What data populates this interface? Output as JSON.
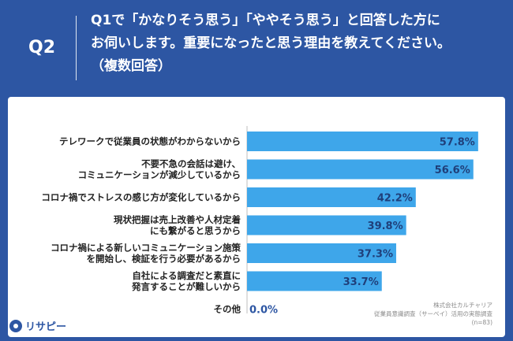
{
  "question": {
    "number": "Q2",
    "lines": [
      "Q1で「かなりそう思う」「ややそう思う」と回答した方に",
      "お伺いします。重要になったと思う理由を教えてください。",
      "（複数回答）"
    ]
  },
  "chart_data": {
    "type": "bar",
    "orientation": "horizontal",
    "categories": [
      [
        "テレワークで従業員の状態がわからないから"
      ],
      [
        "不要不急の会話は避け、",
        "コミュニケーションが減少しているから"
      ],
      [
        "コロナ禍でストレスの感じ方が変化しているから"
      ],
      [
        "現状把握は売上改善や人材定着",
        "にも繋がると思うから"
      ],
      [
        "コロナ禍による新しいコミュニケーション施策",
        "を開始し、検証を行う必要があるから"
      ],
      [
        "自社による調査だと素直に",
        "発言することが難しいから"
      ],
      [
        "その他"
      ]
    ],
    "values": [
      57.8,
      56.6,
      42.2,
      39.8,
      37.3,
      33.7,
      0.0
    ],
    "value_labels": [
      "57.8%",
      "56.6%",
      "42.2%",
      "39.8%",
      "37.3%",
      "33.7%",
      "0.0%"
    ],
    "xlim": [
      0,
      60
    ],
    "bar_color": "#3ea6ea"
  },
  "source": {
    "lines": [
      "株式会社カルチャリア",
      "従業員意識調査（サーベイ）活用の実態調査",
      "(n=83)"
    ]
  },
  "logo": {
    "text": "リサピー"
  }
}
